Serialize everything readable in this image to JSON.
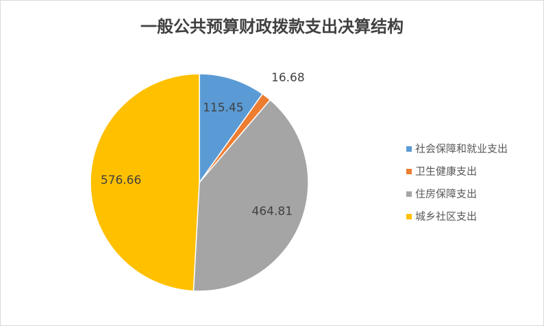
{
  "chart_data": {
    "type": "pie",
    "title": "一般公共预算财政拨款支出决算结构",
    "categories": [
      "社会保障和就业支出",
      "卫生健康支出",
      "住房保障支出",
      "城乡社区支出"
    ],
    "values": [
      115.45,
      16.68,
      464.81,
      576.66
    ],
    "colors": [
      "#5b9bd5",
      "#ed7d31",
      "#a5a5a5",
      "#ffc000"
    ],
    "legend": "right"
  }
}
